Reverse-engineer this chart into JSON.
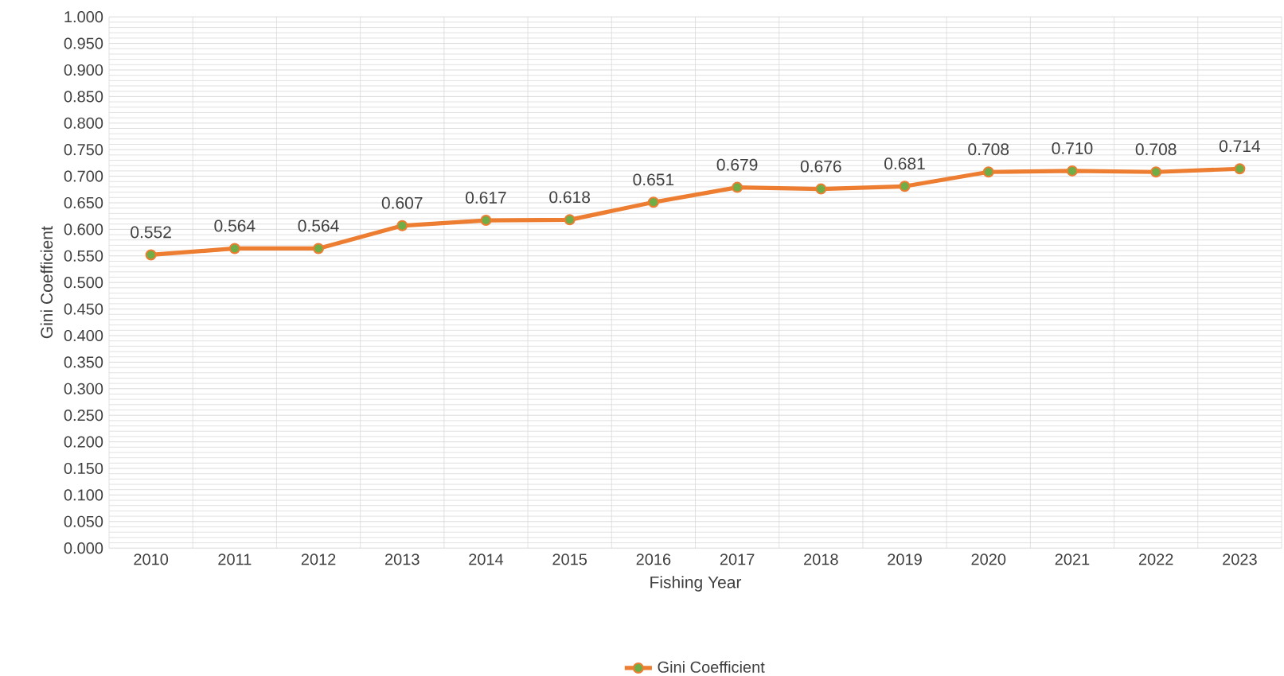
{
  "chart_data": {
    "type": "line",
    "xlabel": "Fishing Year",
    "ylabel": "Gini Coefficient",
    "categories": [
      "2010",
      "2011",
      "2012",
      "2013",
      "2014",
      "2015",
      "2016",
      "2017",
      "2018",
      "2019",
      "2020",
      "2021",
      "2022",
      "2023"
    ],
    "series": [
      {
        "name": "Gini Coefficient",
        "color": "#ed7d31",
        "values": [
          0.552,
          0.564,
          0.564,
          0.607,
          0.617,
          0.618,
          0.651,
          0.679,
          0.676,
          0.681,
          0.708,
          0.71,
          0.708,
          0.714
        ],
        "value_labels": [
          "0.552",
          "0.564",
          "0.564",
          "0.607",
          "0.617",
          "0.618",
          "0.651",
          "0.679",
          "0.676",
          "0.681",
          "0.708",
          "0.710",
          "0.708",
          "0.714"
        ]
      }
    ],
    "ylim": [
      0,
      1
    ],
    "yticks": [
      {
        "value": 0,
        "label": "0.000"
      },
      {
        "value": 0.05,
        "label": "0.050"
      },
      {
        "value": 0.1,
        "label": "0.100"
      },
      {
        "value": 0.15,
        "label": "0.150"
      },
      {
        "value": 0.2,
        "label": "0.200"
      },
      {
        "value": 0.25,
        "label": "0.250"
      },
      {
        "value": 0.3,
        "label": "0.300"
      },
      {
        "value": 0.35,
        "label": "0.350"
      },
      {
        "value": 0.4,
        "label": "0.400"
      },
      {
        "value": 0.45,
        "label": "0.450"
      },
      {
        "value": 0.5,
        "label": "0.500"
      },
      {
        "value": 0.55,
        "label": "0.550"
      },
      {
        "value": 0.6,
        "label": "0.600"
      },
      {
        "value": 0.65,
        "label": "0.650"
      },
      {
        "value": 0.7,
        "label": "0.700"
      },
      {
        "value": 0.75,
        "label": "0.750"
      },
      {
        "value": 0.8,
        "label": "0.800"
      },
      {
        "value": 0.85,
        "label": "0.850"
      },
      {
        "value": 0.9,
        "label": "0.900"
      },
      {
        "value": 0.95,
        "label": "0.950"
      },
      {
        "value": 1,
        "label": "1.000"
      }
    ],
    "grid": true,
    "legend": "bottom",
    "marker": "circle",
    "line_style": "solid"
  }
}
